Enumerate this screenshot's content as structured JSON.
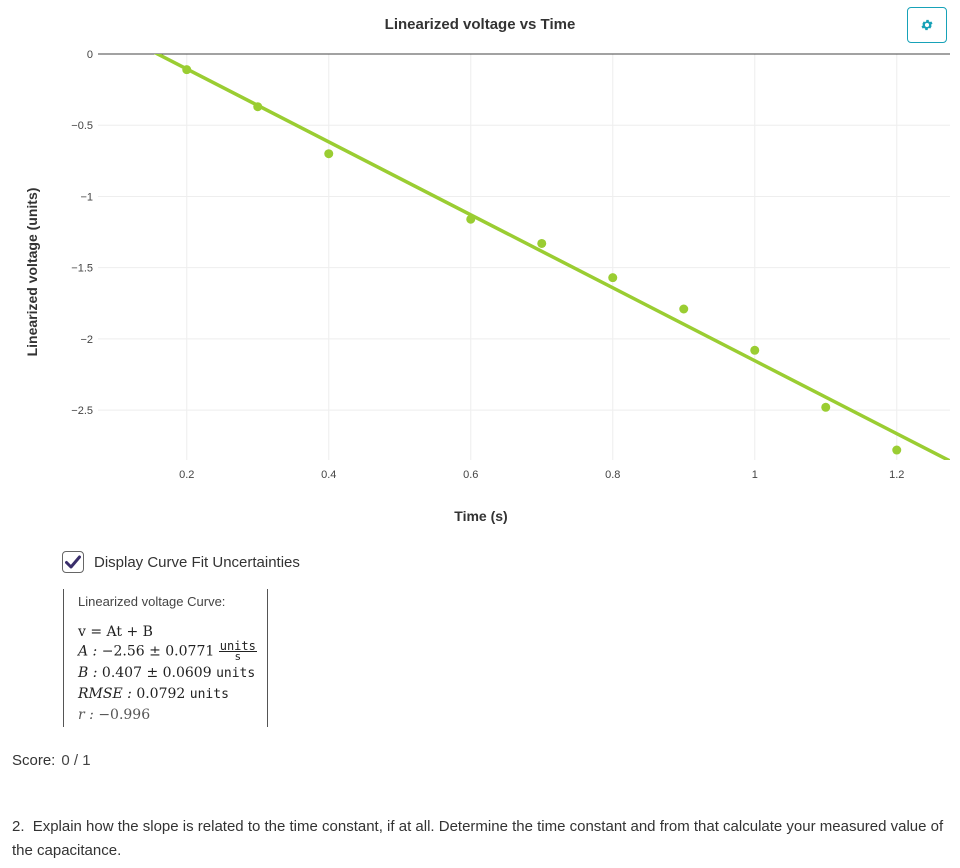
{
  "chart_data": {
    "type": "scatter",
    "title": "Linearized voltage vs Time",
    "xlabel": "Time (s)",
    "ylabel": "Linearized voltage (units)",
    "xlim": [
      0.075,
      1.275
    ],
    "ylim": [
      -2.85,
      0.0
    ],
    "xticks": [
      0.2,
      0.4,
      0.6,
      0.8,
      1.0,
      1.2
    ],
    "xtick_labels": [
      "0.2",
      "0.4",
      "0.6",
      "0.8",
      "1",
      "1.2"
    ],
    "yticks": [
      0,
      -0.5,
      -1,
      -1.5,
      -2,
      -2.5
    ],
    "ytick_labels": [
      "0",
      "−0.5",
      "−1",
      "−1.5",
      "−2",
      "−2.5"
    ],
    "grid": true,
    "series": [
      {
        "type": "scatter",
        "color": "#9acd32",
        "points": [
          {
            "x": 0.2,
            "y": -0.11
          },
          {
            "x": 0.3,
            "y": -0.37
          },
          {
            "x": 0.4,
            "y": -0.7
          },
          {
            "x": 0.6,
            "y": -1.16
          },
          {
            "x": 0.7,
            "y": -1.33
          },
          {
            "x": 0.8,
            "y": -1.57
          },
          {
            "x": 0.9,
            "y": -1.79
          },
          {
            "x": 1.0,
            "y": -2.08
          },
          {
            "x": 1.1,
            "y": -2.48
          },
          {
            "x": 1.2,
            "y": -2.78
          }
        ]
      },
      {
        "type": "line",
        "color": "#9acd32",
        "fit": {
          "A": -2.56,
          "B": 0.407
        }
      }
    ]
  },
  "ui": {
    "settings_icon": "gear-icon",
    "checkbox": {
      "label": "Display Curve Fit Uncertainties",
      "checked": true
    },
    "fit": {
      "title": "Linearized voltage Curve:",
      "equation": "v = At + B",
      "a_label": "A :",
      "a_value": "−2.56 ± 0.0771",
      "a_unit_num": "units",
      "a_unit_den": "s",
      "b_label": "B :",
      "b_value": "0.407 ± 0.0609",
      "b_unit": "units",
      "rmse_label": "RMSE :",
      "rmse_value": "0.0792",
      "rmse_unit": "units",
      "r_label": "r :",
      "r_value": "−0.996"
    },
    "score_label": "Score:",
    "score_value": "0 / 1",
    "question_number": "2.",
    "question_text": "Explain how the slope is related to the time constant, if at all. Determine the time constant and from that calculate your measured value of the capacitance."
  }
}
